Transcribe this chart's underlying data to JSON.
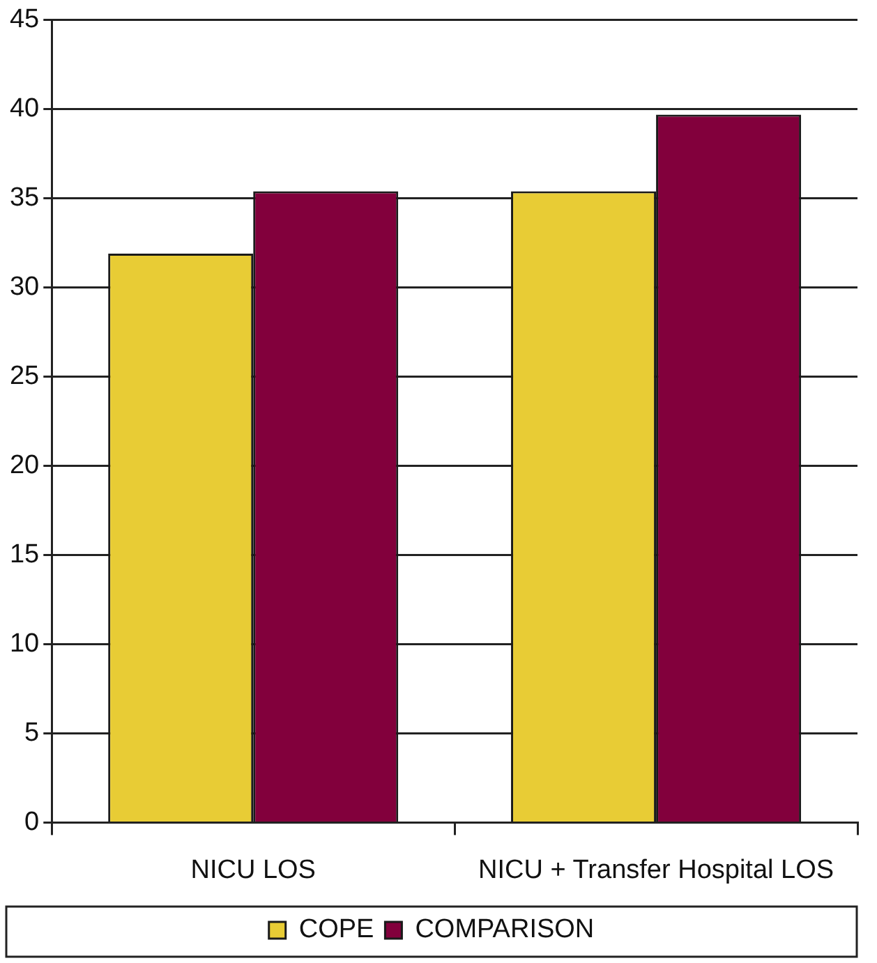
{
  "chart_data": {
    "type": "bar",
    "categories": [
      "NICU LOS",
      "NICU + Transfer Hospital LOS"
    ],
    "series": [
      {
        "name": "COPE",
        "color": "#e8cc35",
        "values": [
          31.9,
          35.4
        ]
      },
      {
        "name": "COMPARISON",
        "color": "#82003c",
        "values": [
          35.4,
          39.7
        ]
      }
    ],
    "ylim": [
      0,
      45
    ],
    "yticks": [
      0,
      5,
      10,
      15,
      20,
      25,
      30,
      35,
      40,
      45
    ],
    "grid": "y",
    "legend": "bottom"
  }
}
